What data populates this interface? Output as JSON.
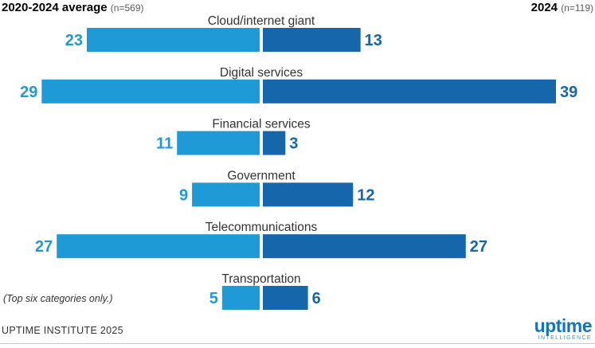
{
  "header": {
    "left_title": "2020-2024 average",
    "left_n": "(n=569)",
    "right_title": "2024",
    "right_n": "(n=119)"
  },
  "colors": {
    "left_series": "#1e9ad6",
    "right_series": "#1566aa",
    "left_label": "#1e9ad6",
    "right_label": "#1566aa",
    "category_text": "#333333"
  },
  "chart_data": {
    "type": "bar",
    "orientation": "diverging-horizontal",
    "categories": [
      "Cloud/internet giant",
      "Digital services",
      "Financial services",
      "Government",
      "Telecommunications",
      "Transportation"
    ],
    "series": [
      {
        "name": "2020-2024 average (n=569)",
        "side": "left",
        "values": [
          23,
          29,
          11,
          9,
          27,
          5
        ]
      },
      {
        "name": "2024 (n=119)",
        "side": "right",
        "values": [
          13,
          39,
          3,
          12,
          27,
          6
        ]
      }
    ],
    "xlim": [
      0,
      39
    ],
    "grid": false,
    "legend": "top"
  },
  "note": "(Top six categories only.)",
  "source": "UPTIME INSTITUTE 2025",
  "logo": {
    "word": "uptime",
    "sub": "INTELLIGENCE"
  }
}
